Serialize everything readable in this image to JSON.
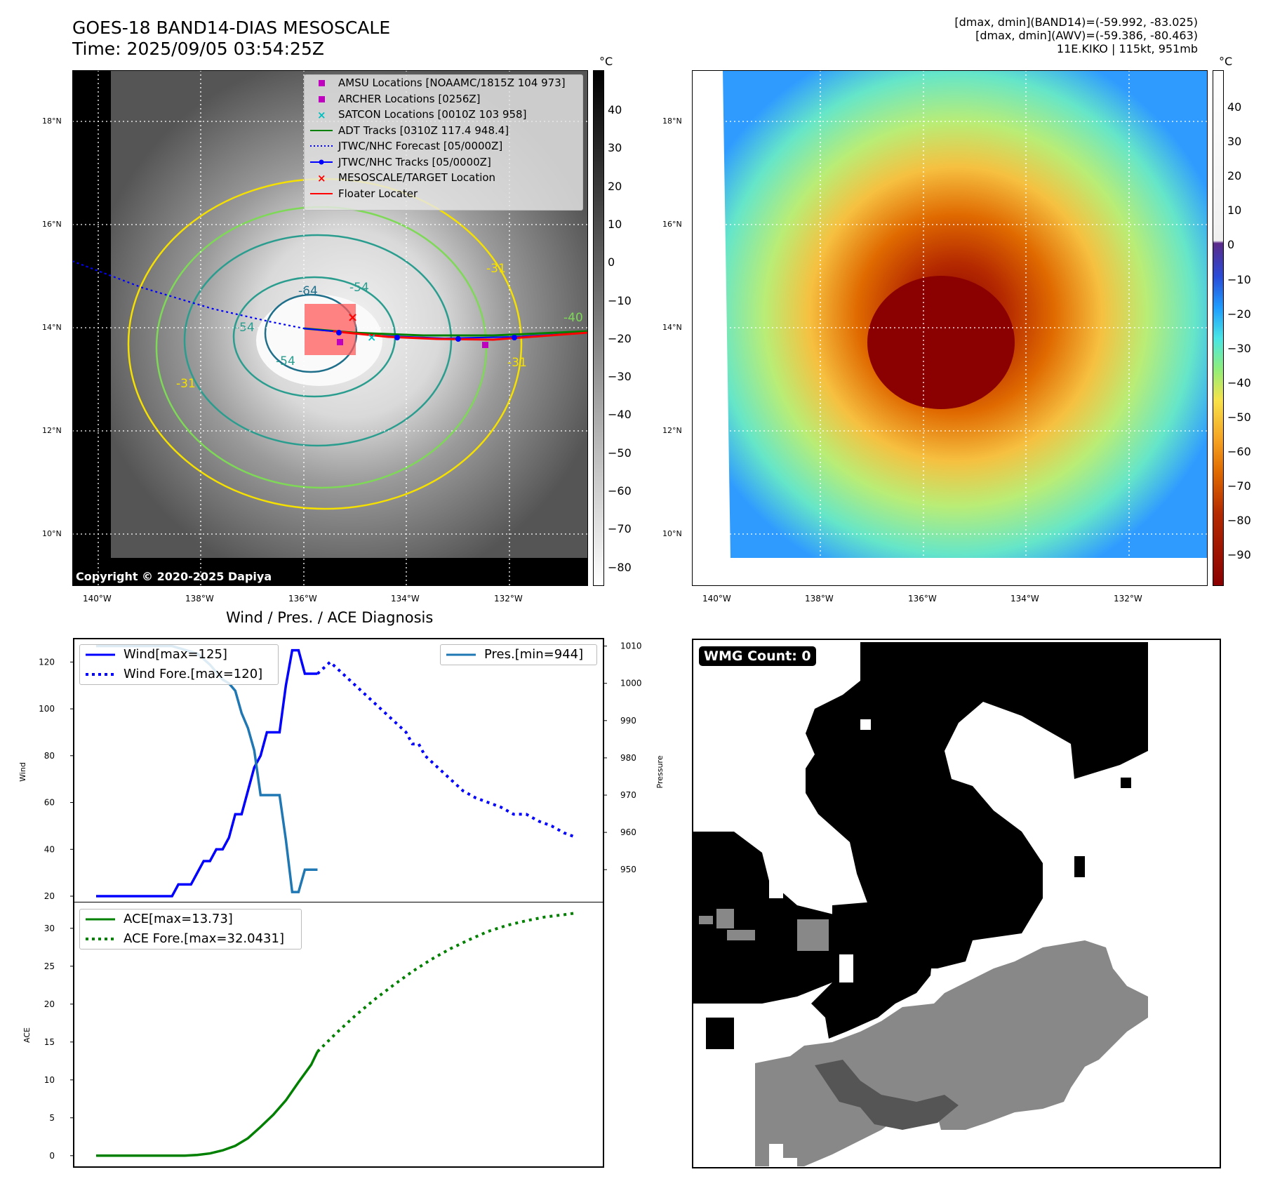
{
  "header": {
    "title_line1": "GOES-18 BAND14-DIAS MESOSCALE",
    "title_line2": "Time: 2025/09/05 03:54:25Z",
    "info_line1": "[dmax, dmin](BAND14)=(-59.992, -83.025)",
    "info_line2": "[dmax, dmin](AWV)=(-59.386, -80.463)",
    "info_line3": "11E.KIKO | 115kt, 951mb"
  },
  "maps": {
    "lat_labels": [
      "18°N",
      "16°N",
      "14°N",
      "12°N",
      "10°N"
    ],
    "lon_labels": [
      "140°W",
      "138°W",
      "136°W",
      "134°W",
      "132°W"
    ],
    "unit": "°C",
    "ir_colorbar_ticks": [
      "40",
      "30",
      "20",
      "10",
      "0",
      "−10",
      "−20",
      "−30",
      "−40",
      "−50",
      "−60",
      "−70",
      "−80"
    ],
    "color_colorbar_ticks": [
      "40",
      "30",
      "20",
      "10",
      "0",
      "−10",
      "−20",
      "−30",
      "−40",
      "−50",
      "−60",
      "−70",
      "−80",
      "−90"
    ],
    "copyright": "Copyright © 2020-2025 Dapiya",
    "contour_labels": [
      "-64",
      "-54",
      "-54",
      "-54",
      "-31",
      "-31",
      "-31",
      "-40"
    ],
    "legend": [
      {
        "label": "AMSU Locations [NOAAMC/1815Z 104 973]",
        "symbol": "square",
        "color": "#bf00bf"
      },
      {
        "label": "ARCHER Locations [0256Z]",
        "symbol": "square",
        "color": "#bf00bf"
      },
      {
        "label": "SATCON Locations [0010Z 103 958]",
        "symbol": "x",
        "color": "#00bfbf"
      },
      {
        "label": "ADT Tracks [0310Z 117.4 948.4]",
        "symbol": "line",
        "color": "#008000"
      },
      {
        "label": "JTWC/NHC Forecast [05/0000Z]",
        "symbol": "dotted",
        "color": "#0000ff"
      },
      {
        "label": "JTWC/NHC Tracks [05/0000Z]",
        "symbol": "line-dot",
        "color": "#0000ff"
      },
      {
        "label": "MESOSCALE/TARGET Location",
        "symbol": "x",
        "color": "#ff0000"
      },
      {
        "label": "Floater Locater",
        "symbol": "line",
        "color": "#ff0000"
      }
    ]
  },
  "wmg": {
    "label": "WMG Count: 0"
  },
  "chart_data": [
    {
      "type": "line",
      "title": "Wind / Pres. / ACE Diagnosis",
      "ylabel": "Wind",
      "y2label": "Pressure",
      "ylim": [
        17,
        130
      ],
      "y2lim": [
        941,
        1012
      ],
      "yticks": [
        "120",
        "100",
        "80",
        "60",
        "40",
        "20"
      ],
      "y2ticks": [
        "1010",
        "1000",
        "990",
        "980",
        "970",
        "960",
        "950"
      ],
      "legend_left": [
        "Wind[max=125]",
        "Wind Fore.[max=120]"
      ],
      "legend_right": [
        "Pres.[min=944]"
      ],
      "series": [
        {
          "name": "Wind[max=125]",
          "color": "#0000ff",
          "style": "solid",
          "x": [
            0,
            1,
            2,
            3,
            4,
            5,
            6,
            7,
            8,
            9,
            10,
            11,
            12,
            13,
            14,
            15,
            16,
            17,
            18,
            19,
            20,
            21,
            22,
            23,
            24,
            25,
            26,
            27,
            28,
            29,
            30,
            31,
            32,
            33,
            34,
            35,
            36,
            37,
            38,
            39,
            40
          ],
          "values": [
            20,
            20,
            20,
            20,
            20,
            20,
            20,
            20,
            20,
            20,
            20,
            20,
            20,
            25,
            25,
            25,
            30,
            35,
            35,
            40,
            40,
            45,
            55,
            55,
            65,
            75,
            80,
            90,
            90,
            90,
            110,
            125,
            125,
            115,
            115,
            115,
            null,
            null,
            null,
            null,
            null
          ]
        },
        {
          "name": "Wind Fore.[max=120]",
          "color": "#0000ff",
          "style": "dotted",
          "x": [
            35,
            37,
            39,
            41,
            43,
            45,
            47,
            49,
            50,
            51,
            52,
            54,
            56,
            58,
            60,
            62,
            64,
            66,
            68,
            70,
            72,
            74,
            76
          ],
          "values": [
            115,
            120,
            115,
            110,
            105,
            100,
            95,
            90,
            85,
            85,
            80,
            75,
            70,
            65,
            62,
            60,
            58,
            55,
            55,
            52,
            50,
            47,
            45
          ]
        },
        {
          "name": "Pres.[min=944]",
          "color": "#1f77b4",
          "style": "solid",
          "axis": "y2",
          "x": [
            0,
            2,
            4,
            6,
            8,
            10,
            12,
            14,
            16,
            18,
            20,
            21,
            22,
            23,
            24,
            25,
            26,
            27,
            28,
            29,
            30,
            31,
            32,
            33,
            34,
            35
          ],
          "values": [
            1010,
            1010,
            1010,
            1010,
            1010,
            1010,
            1010,
            1009,
            1008,
            1005,
            1001,
            1000,
            998,
            992,
            988,
            982,
            970,
            970,
            970,
            970,
            958,
            944,
            944,
            950,
            950,
            950
          ]
        }
      ]
    },
    {
      "type": "line",
      "ylabel": "ACE",
      "ylim": [
        -1.5,
        33.5
      ],
      "yticks": [
        "30",
        "25",
        "20",
        "15",
        "10",
        "5",
        "0"
      ],
      "legend": [
        "ACE[max=13.73]",
        "ACE Fore.[max=32.0431]"
      ],
      "series": [
        {
          "name": "ACE[max=13.73]",
          "color": "#008000",
          "style": "solid",
          "x": [
            0,
            2,
            4,
            6,
            8,
            10,
            12,
            14,
            16,
            18,
            20,
            22,
            24,
            26,
            28,
            30,
            32,
            34,
            35
          ],
          "values": [
            0,
            0,
            0,
            0,
            0,
            0,
            0,
            0,
            0.1,
            0.3,
            0.7,
            1.3,
            2.3,
            3.8,
            5.4,
            7.3,
            9.7,
            12.0,
            13.73
          ]
        },
        {
          "name": "ACE Fore.[max=32.0431]",
          "color": "#008000",
          "style": "dotted",
          "x": [
            35,
            38,
            41,
            44,
            47,
            50,
            53,
            56,
            59,
            62,
            65,
            68,
            71,
            74,
            76
          ],
          "values": [
            13.73,
            16.2,
            18.5,
            20.6,
            22.5,
            24.3,
            25.9,
            27.3,
            28.5,
            29.6,
            30.4,
            31.0,
            31.5,
            31.8,
            32.04
          ]
        }
      ]
    }
  ]
}
